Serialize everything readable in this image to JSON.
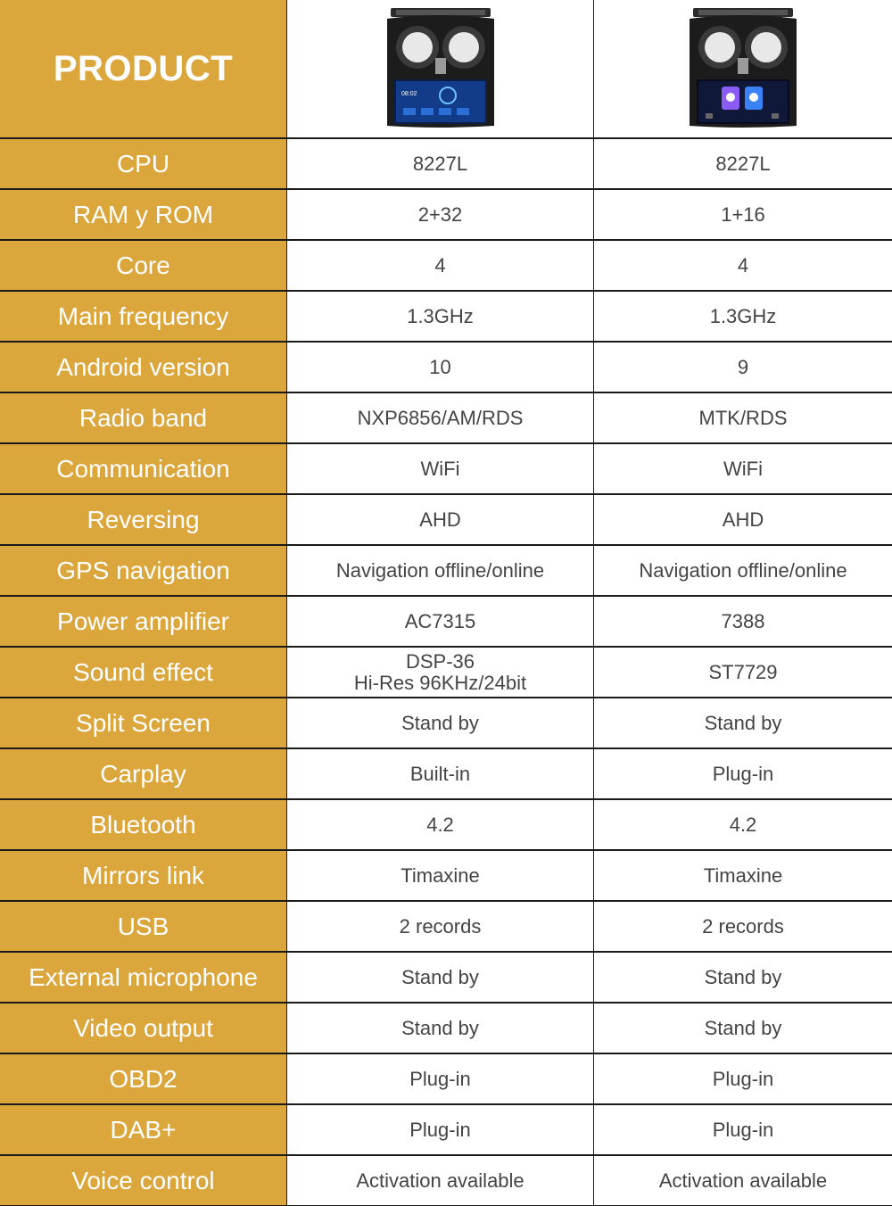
{
  "header": {
    "title": "PRODUCT",
    "products": [
      {
        "image": "car-radio-unit-icon",
        "screen": "home-screen-clock-weather"
      },
      {
        "image": "car-radio-unit-icon",
        "screen": "home-screen-app-icons"
      }
    ],
    "screen_clock": "08:02"
  },
  "colors": {
    "label_bg": "#dba73c",
    "label_text": "#ffffff",
    "value_text": "#444444",
    "divider": "#1a1a1a"
  },
  "rows": [
    {
      "label": "CPU",
      "values": [
        "8227L",
        "8227L"
      ]
    },
    {
      "label": "RAM y ROM",
      "values": [
        "2+32",
        "1+16"
      ]
    },
    {
      "label": "Core",
      "values": [
        "4",
        "4"
      ]
    },
    {
      "label": "Main frequency",
      "values": [
        "1.3GHz",
        "1.3GHz"
      ]
    },
    {
      "label": "Android version",
      "values": [
        "10",
        "9"
      ]
    },
    {
      "label": "Radio band",
      "values": [
        "NXP6856/AM/RDS",
        "MTK/RDS"
      ]
    },
    {
      "label": "Communication",
      "values": [
        "WiFi",
        "WiFi"
      ]
    },
    {
      "label": "Reversing",
      "values": [
        "AHD",
        "AHD"
      ]
    },
    {
      "label": "GPS navigation",
      "values": [
        "Navigation offline/online",
        "Navigation offline/online"
      ]
    },
    {
      "label": "Power amplifier",
      "values": [
        "AC7315",
        "7388"
      ]
    },
    {
      "label": "Sound effect",
      "values": [
        "DSP-36\nHi-Res 96KHz/24bit",
        "ST7729"
      ]
    },
    {
      "label": "Split Screen",
      "values": [
        "Stand by",
        "Stand by"
      ]
    },
    {
      "label": "Carplay",
      "values": [
        "Built-in",
        "Plug-in"
      ]
    },
    {
      "label": "Bluetooth",
      "values": [
        "4.2",
        "4.2"
      ]
    },
    {
      "label": "Mirrors link",
      "values": [
        "Timaxine",
        "Timaxine"
      ]
    },
    {
      "label": "USB",
      "values": [
        "2 records",
        "2 records"
      ]
    },
    {
      "label": "External microphone",
      "values": [
        "Stand by",
        "Stand by"
      ]
    },
    {
      "label": "Video output",
      "values": [
        "Stand by",
        "Stand by"
      ]
    },
    {
      "label": "OBD2",
      "values": [
        "Plug-in",
        "Plug-in"
      ]
    },
    {
      "label": "DAB+",
      "values": [
        "Plug-in",
        "Plug-in"
      ]
    },
    {
      "label": "Voice control",
      "values": [
        "Activation available",
        "Activation available"
      ]
    }
  ]
}
